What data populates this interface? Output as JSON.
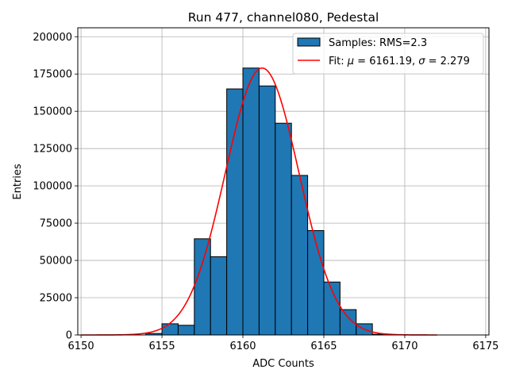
{
  "chart_data": {
    "type": "bar",
    "title": "Run 477, channel080, Pedestal",
    "xlabel": "ADC Counts",
    "ylabel": "Entries",
    "xlim": [
      6149.8,
      6175.2
    ],
    "ylim": [
      0,
      206000
    ],
    "grid": true,
    "legend_position": "top-right",
    "x_ticks": [
      6150,
      6155,
      6160,
      6165,
      6170,
      6175
    ],
    "y_ticks": [
      0,
      25000,
      50000,
      75000,
      100000,
      125000,
      150000,
      175000,
      200000
    ],
    "histogram": {
      "name": "Samples: RMS=2.3",
      "color": "#1f77b4",
      "edgecolor": "#000000",
      "bin_edges": [
        6154,
        6155,
        6156,
        6157,
        6158,
        6159,
        6160,
        6161,
        6162,
        6163,
        6164,
        6165,
        6166,
        6167,
        6168,
        6169
      ],
      "counts": [
        1000,
        7500,
        6500,
        64500,
        52500,
        165000,
        179000,
        167000,
        142000,
        107000,
        70000,
        35500,
        17000,
        7500,
        500
      ]
    },
    "fit": {
      "name": "Fit: μ = 6161.19, σ = 2.279",
      "label_prefix": "Fit: ",
      "label_mu": "μ",
      "label_mid": " = 6161.19, ",
      "label_sigma": "σ",
      "label_suffix": " = 2.279",
      "color": "#ff0000",
      "mu": 6161.19,
      "sigma": 2.279,
      "amplitude": 179000,
      "x_range": [
        6150,
        6172
      ]
    }
  }
}
